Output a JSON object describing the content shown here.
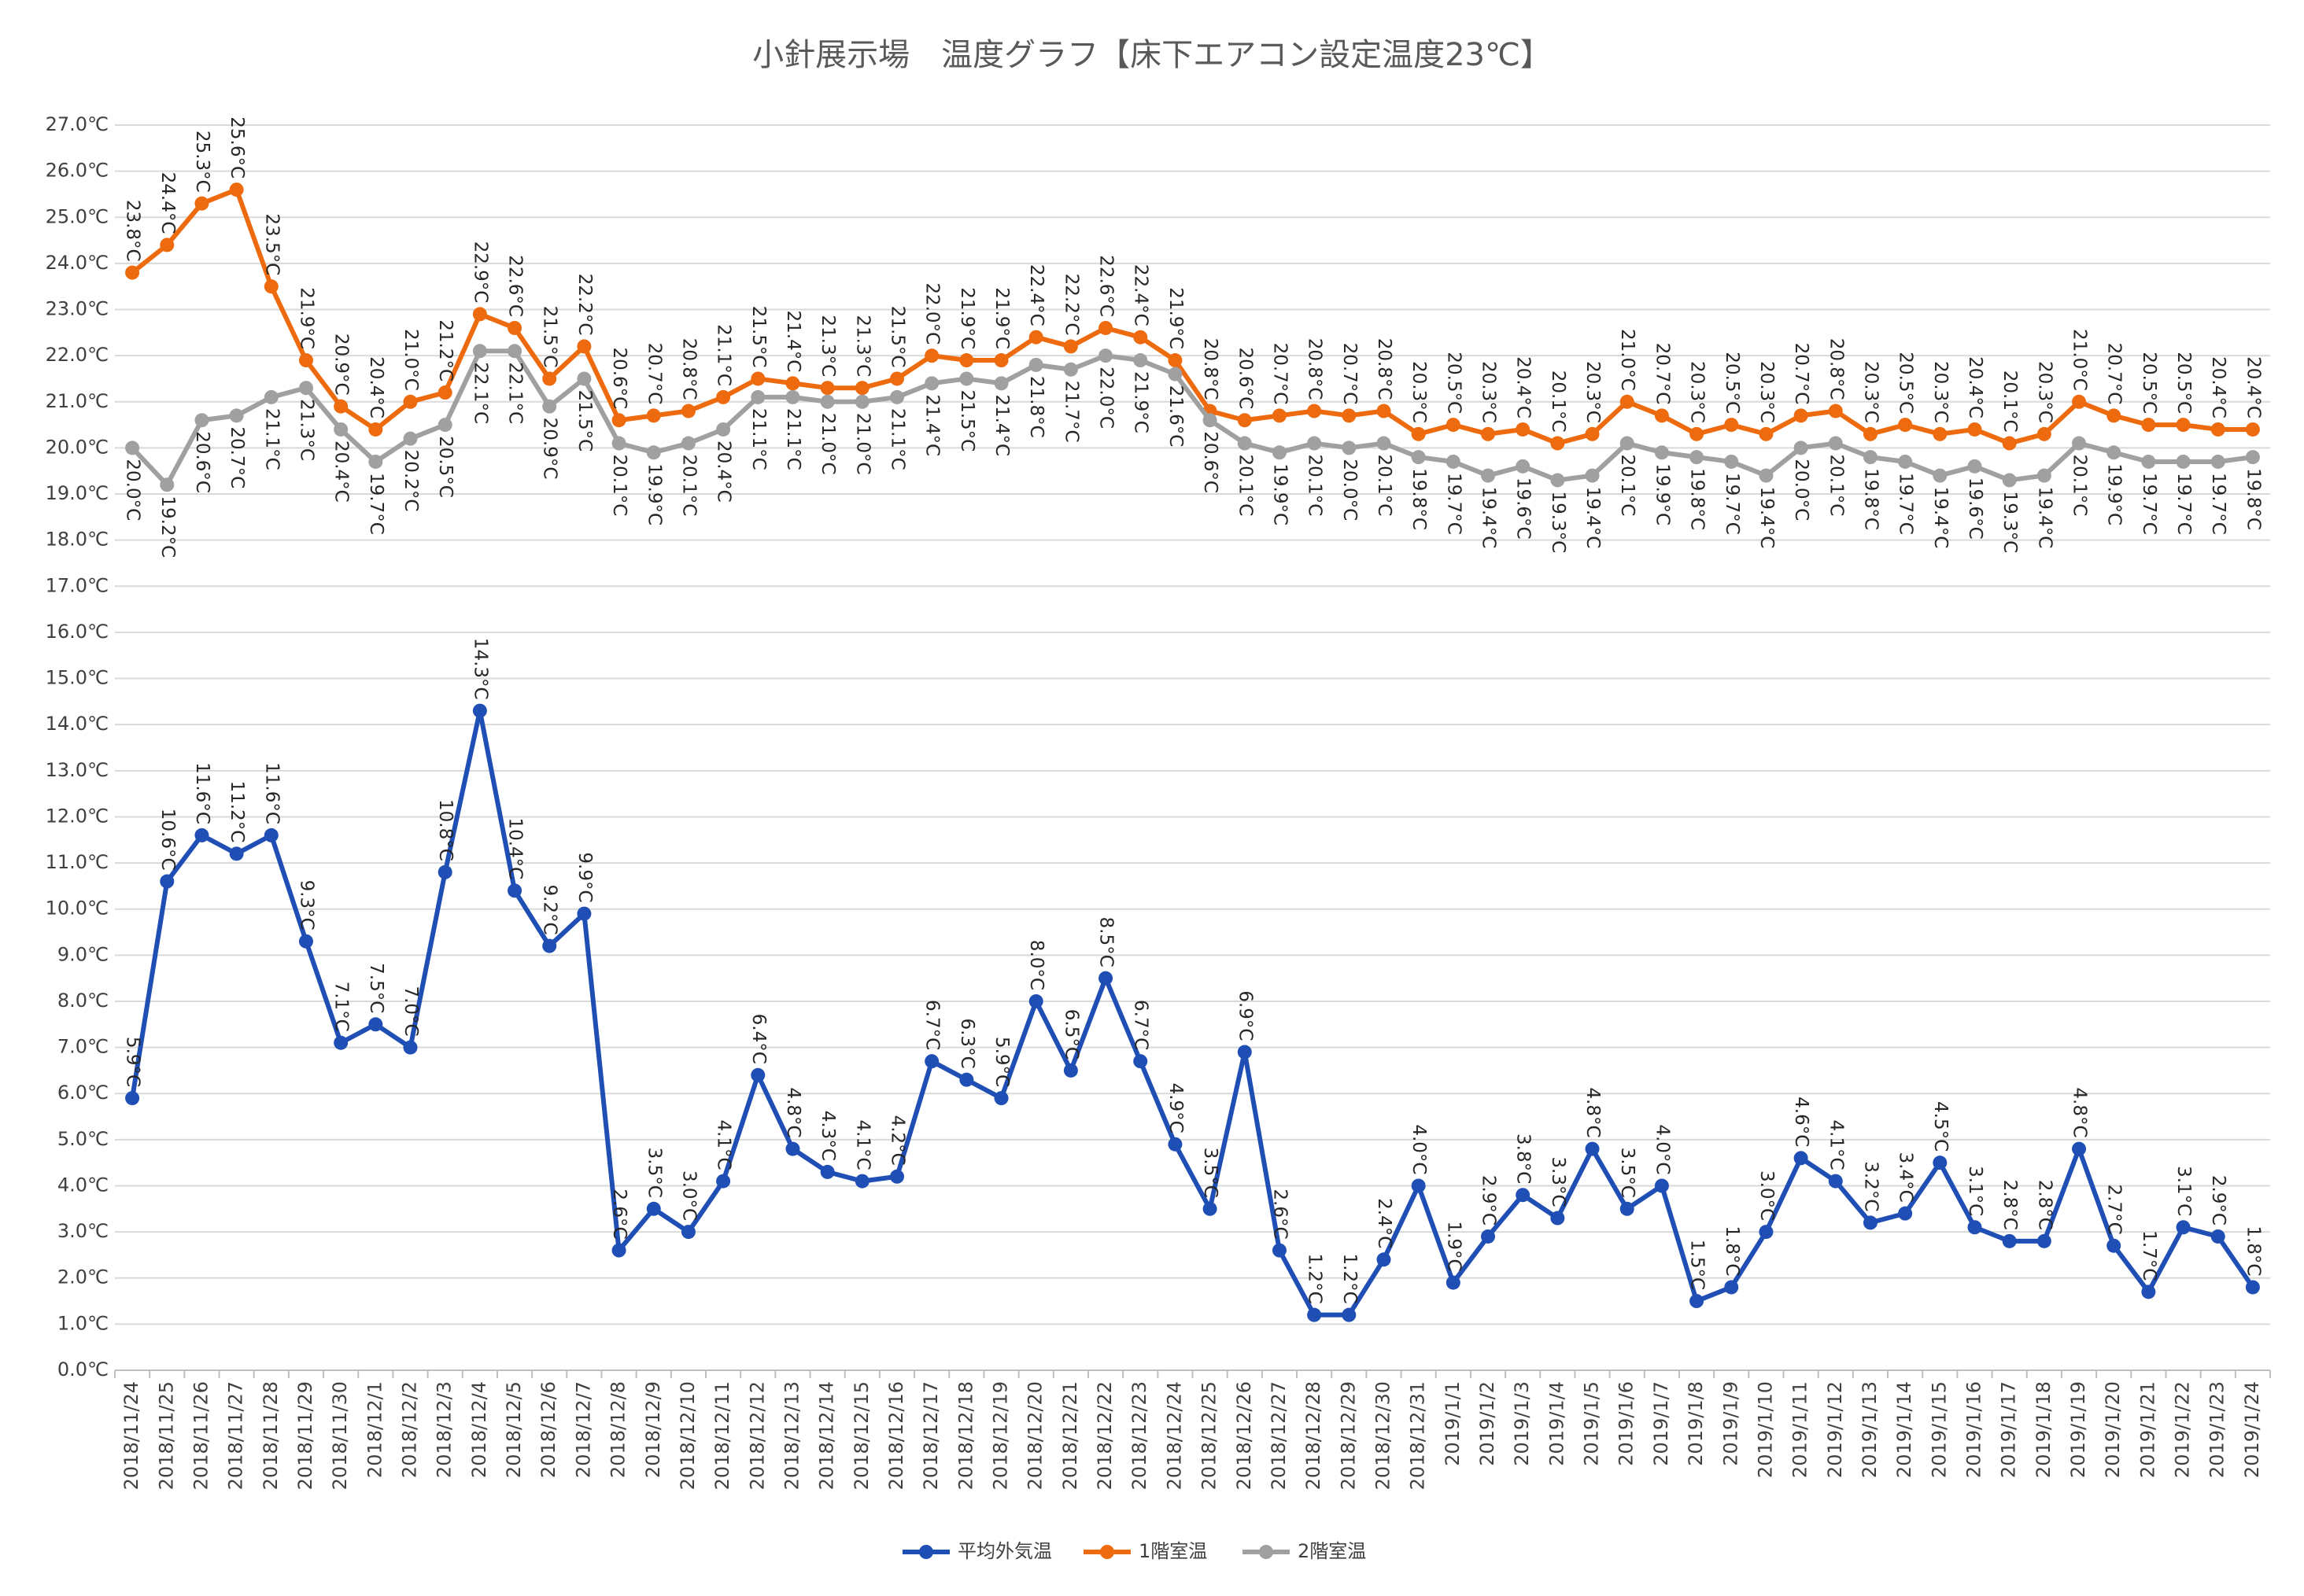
{
  "chart_data": {
    "type": "line",
    "title": "小針展示場　温度グラフ【床下エアコン設定温度23℃】",
    "categories": [
      "2018/11/24",
      "2018/11/25",
      "2018/11/26",
      "2018/11/27",
      "2018/11/28",
      "2018/11/29",
      "2018/11/30",
      "2018/12/1",
      "2018/12/2",
      "2018/12/3",
      "2018/12/4",
      "2018/12/5",
      "2018/12/6",
      "2018/12/7",
      "2018/12/8",
      "2018/12/9",
      "2018/12/10",
      "2018/12/11",
      "2018/12/12",
      "2018/12/13",
      "2018/12/14",
      "2018/12/15",
      "2018/12/16",
      "2018/12/17",
      "2018/12/18",
      "2018/12/19",
      "2018/12/20",
      "2018/12/21",
      "2018/12/22",
      "2018/12/23",
      "2018/12/24",
      "2018/12/25",
      "2018/12/26",
      "2018/12/27",
      "2018/12/28",
      "2018/12/29",
      "2018/12/30",
      "2018/12/31",
      "2019/1/1",
      "2019/1/2",
      "2019/1/3",
      "2019/1/4",
      "2019/1/5",
      "2019/1/6",
      "2019/1/7",
      "2019/1/8",
      "2019/1/9",
      "2019/1/10",
      "2019/1/11",
      "2019/1/12",
      "2019/1/13",
      "2019/1/14",
      "2019/1/15",
      "2019/1/16",
      "2019/1/17",
      "2019/1/18",
      "2019/1/19",
      "2019/1/20",
      "2019/1/21",
      "2019/1/22",
      "2019/1/23",
      "2019/1/24"
    ],
    "series": [
      {
        "name": "平均外気温",
        "color": "#1f4eb4",
        "values": [
          5.9,
          10.6,
          11.6,
          11.2,
          11.6,
          9.3,
          7.1,
          7.5,
          7.0,
          10.8,
          14.3,
          10.4,
          9.2,
          9.9,
          2.6,
          3.5,
          3.0,
          4.1,
          6.4,
          4.8,
          4.3,
          4.1,
          4.2,
          6.7,
          6.3,
          5.9,
          8.0,
          6.5,
          8.5,
          6.7,
          4.9,
          3.5,
          6.9,
          2.6,
          1.2,
          1.2,
          2.4,
          4.0,
          1.9,
          2.9,
          3.8,
          3.3,
          4.8,
          3.5,
          4.0,
          1.5,
          1.8,
          3.0,
          4.6,
          4.1,
          3.2,
          3.4,
          4.5,
          3.1,
          2.8,
          2.8,
          4.8,
          2.7,
          1.7,
          3.1,
          2.9,
          1.8
        ],
        "value_labels": [
          "5.9°C",
          "10.6°C",
          "11.6°C",
          "11.2°C",
          "11.6°C",
          "9.3°C",
          "7.1°C",
          "7.5°C",
          "7.0°C",
          "10.8°C",
          "14.3°C",
          "10.4°C",
          "9.2°C",
          "9.9°C",
          "2.6°C",
          "3.5°C",
          "3.0°C",
          "4.1°C",
          "6.4°C",
          "4.8°C",
          "4.3°C",
          "4.1°C",
          "4.2°C",
          "6.7°C",
          "6.3°C",
          "5.9°C",
          "8.0°C",
          "6.5°C",
          "8.5°C",
          "6.7°C",
          "4.9°C",
          "3.5°C",
          "6.9°C",
          "2.6°C",
          "1.2°C",
          "1.2°C",
          "2.4°C",
          "4.0°C",
          "1.9°C",
          "2.9°C",
          "3.8°C",
          "3.3°C",
          "4.8°C",
          "3.5°C",
          "4.0°C",
          "1.5°C",
          "1.8°C",
          "3.0°C",
          "4.6°C",
          "4.1°C",
          "3.2°C",
          "3.4°C",
          "4.5°C",
          "3.1°C",
          "2.8°C",
          "2.8°C",
          "4.8°C",
          "2.7°C",
          "1.7°C",
          "3.1°C",
          "2.9°C",
          "1.8°C"
        ]
      },
      {
        "name": "1階室温",
        "color": "#ed6b0e",
        "values": [
          23.8,
          24.4,
          25.3,
          25.6,
          23.5,
          21.9,
          20.9,
          20.4,
          21.0,
          21.2,
          22.9,
          22.6,
          21.5,
          22.2,
          20.6,
          20.7,
          20.8,
          21.1,
          21.5,
          21.4,
          21.3,
          21.3,
          21.5,
          22.0,
          21.9,
          21.9,
          22.4,
          22.2,
          22.6,
          22.4,
          21.9,
          20.8,
          20.6,
          20.7,
          20.8,
          20.7,
          20.8,
          20.3,
          20.5,
          20.3,
          20.4,
          20.1,
          20.3,
          21.0,
          20.7,
          20.3,
          20.5,
          20.3,
          20.7,
          20.8,
          20.3,
          20.5,
          20.3,
          20.4,
          20.1,
          20.3,
          21.0,
          20.7,
          20.5,
          20.5,
          20.4,
          20.4
        ],
        "value_labels": [
          "23.8°C",
          "24.4°C",
          "25.3°C",
          "25.6°C",
          "23.5°C",
          "21.9°C",
          "20.9°C",
          "20.4°C",
          "21.0°C",
          "21.2°C",
          "22.9°C",
          "22.6°C",
          "21.5°C",
          "22.2°C",
          "20.6°C",
          "20.7°C",
          "20.8°C",
          "21.1°C",
          "21.5°C",
          "21.4°C",
          "21.3°C",
          "21.3°C",
          "21.5°C",
          "22.0°C",
          "21.9°C",
          "21.9°C",
          "22.4°C",
          "22.2°C",
          "22.6°C",
          "22.4°C",
          "21.9°C",
          "20.8°C",
          "20.6°C",
          "20.7°C",
          "20.8°C",
          "20.7°C",
          "20.8°C",
          "20.3°C",
          "20.5°C",
          "20.3°C",
          "20.4°C",
          "20.1°C",
          "20.3°C",
          "21.0°C",
          "20.7°C",
          "20.3°C",
          "20.5°C",
          "20.3°C",
          "20.7°C",
          "20.8°C",
          "20.3°C",
          "20.5°C",
          "20.3°C",
          "20.4°C",
          "20.1°C",
          "20.3°C",
          "21.0°C",
          "20.7°C",
          "20.5°C",
          "20.5°C",
          "20.4°C",
          "20.4°C"
        ]
      },
      {
        "name": "2階室温",
        "color": "#a0a0a0",
        "values": [
          20.0,
          19.2,
          20.6,
          20.7,
          21.1,
          21.3,
          20.4,
          19.7,
          20.2,
          20.5,
          22.1,
          22.1,
          20.9,
          21.5,
          20.1,
          19.9,
          20.1,
          20.4,
          21.1,
          21.1,
          21.0,
          21.0,
          21.1,
          21.4,
          21.5,
          21.4,
          21.8,
          21.7,
          22.0,
          21.9,
          21.6,
          20.6,
          20.1,
          19.9,
          20.1,
          20.0,
          20.1,
          19.8,
          19.7,
          19.4,
          19.6,
          19.3,
          19.4,
          20.1,
          19.9,
          19.8,
          19.7,
          19.4,
          20.0,
          20.1,
          19.8,
          19.7,
          19.4,
          19.6,
          19.3,
          19.4,
          20.1,
          19.9,
          19.7,
          19.7,
          19.7,
          19.8
        ],
        "value_labels": [
          "20.0°C",
          "19.2°C",
          "20.6°C",
          "20.7°C",
          "21.1°C",
          "21.3°C",
          "20.4°C",
          "19.7°C",
          "20.2°C",
          "20.5°C",
          "22.1°C",
          "22.1°C",
          "20.9°C",
          "21.5°C",
          "20.1°C",
          "19.9°C",
          "20.1°C",
          "20.4°C",
          "21.1°C",
          "21.1°C",
          "21.0°C",
          "21.0°C",
          "21.1°C",
          "21.4°C",
          "21.5°C",
          "21.4°C",
          "21.8°C",
          "21.7°C",
          "22.0°C",
          "21.9°C",
          "21.6°C",
          "20.6°C",
          "20.1°C",
          "19.9°C",
          "20.1°C",
          "20.0°C",
          "20.1°C",
          "19.8°C",
          "19.7°C",
          "19.4°C",
          "19.6°C",
          "19.3°C",
          "19.4°C",
          "20.1°C",
          "19.9°C",
          "19.8°C",
          "19.7°C",
          "19.4°C",
          "20.0°C",
          "20.1°C",
          "19.8°C",
          "19.7°C",
          "19.4°C",
          "19.6°C",
          "19.3°C",
          "19.4°C",
          "20.1°C",
          "19.9°C",
          "19.7°C",
          "19.7°C",
          "19.7°C",
          "19.8°C"
        ]
      }
    ],
    "ylim": [
      0,
      27
    ],
    "yticks": [
      {
        "value": 0,
        "label": "0.0℃"
      },
      {
        "value": 1,
        "label": "1.0℃"
      },
      {
        "value": 2,
        "label": "2.0℃"
      },
      {
        "value": 3,
        "label": "3.0℃"
      },
      {
        "value": 4,
        "label": "4.0℃"
      },
      {
        "value": 5,
        "label": "5.0℃"
      },
      {
        "value": 6,
        "label": "6.0℃"
      },
      {
        "value": 7,
        "label": "7.0℃"
      },
      {
        "value": 8,
        "label": "8.0℃"
      },
      {
        "value": 9,
        "label": "9.0℃"
      },
      {
        "value": 10,
        "label": "10.0℃"
      },
      {
        "value": 11,
        "label": "11.0℃"
      },
      {
        "value": 12,
        "label": "12.0℃"
      },
      {
        "value": 13,
        "label": "13.0℃"
      },
      {
        "value": 14,
        "label": "14.0℃"
      },
      {
        "value": 15,
        "label": "15.0℃"
      },
      {
        "value": 16,
        "label": "16.0℃"
      },
      {
        "value": 17,
        "label": "17.0℃"
      },
      {
        "value": 18,
        "label": "18.0℃"
      },
      {
        "value": 19,
        "label": "19.0℃"
      },
      {
        "value": 20,
        "label": "20.0℃"
      },
      {
        "value": 21,
        "label": "21.0℃"
      },
      {
        "value": 22,
        "label": "22.0℃"
      },
      {
        "value": 23,
        "label": "23.0℃"
      },
      {
        "value": 24,
        "label": "24.0℃"
      },
      {
        "value": 25,
        "label": "25.0℃"
      },
      {
        "value": 26,
        "label": "26.0℃"
      },
      {
        "value": 27,
        "label": "27.0℃"
      }
    ],
    "grid": true,
    "legend": "bottom"
  }
}
